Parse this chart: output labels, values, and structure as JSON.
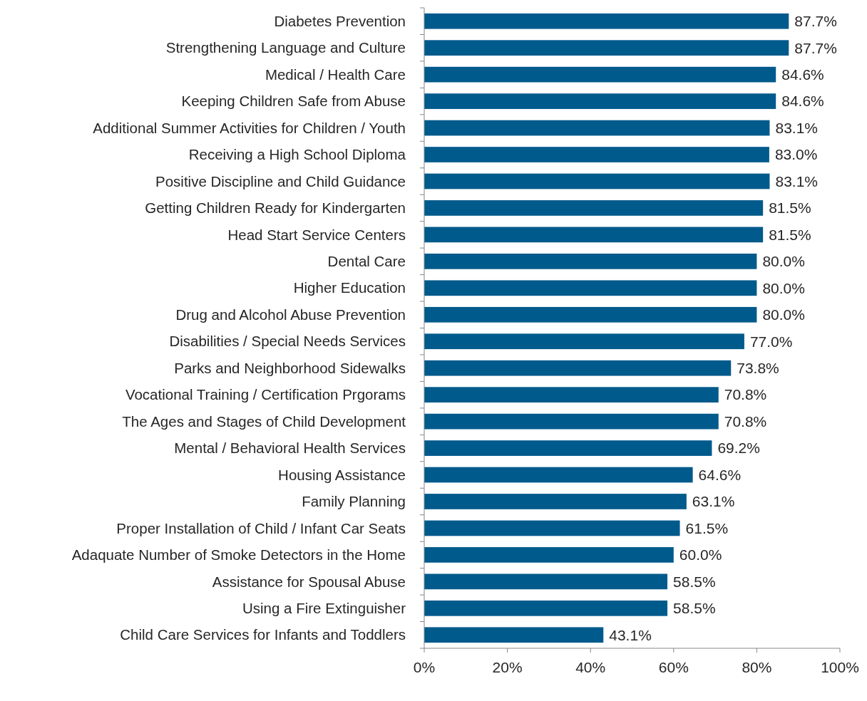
{
  "chart_data": {
    "type": "bar",
    "orientation": "horizontal",
    "categories": [
      "Diabetes Prevention",
      "Strengthening Language and Culture",
      "Medical / Health Care",
      "Keeping Children Safe from Abuse",
      "Additional Summer Activities for Children / Youth",
      "Receiving a High School Diploma",
      "Positive Discipline and Child Guidance",
      "Getting Children Ready for Kindergarten",
      "Head Start Service Centers",
      "Dental Care",
      "Higher Education",
      "Drug and Alcohol Abuse Prevention",
      "Disabilities / Special Needs Services",
      "Parks and Neighborhood Sidewalks",
      "Vocational Training / Certification Prgorams",
      "The Ages and Stages of Child Development",
      "Mental / Behavioral Health Services",
      "Housing Assistance",
      "Family Planning",
      "Proper Installation of Child / Infant Car Seats",
      "Adaquate Number of Smoke Detectors in the Home",
      "Assistance for Spousal Abuse",
      "Using a Fire Extinguisher",
      "Child Care Services for Infants and Toddlers"
    ],
    "values": [
      87.7,
      87.7,
      84.6,
      84.6,
      83.1,
      83.0,
      83.1,
      81.5,
      81.5,
      80.0,
      80.0,
      80.0,
      77.0,
      73.8,
      70.8,
      70.8,
      69.2,
      64.6,
      63.1,
      61.5,
      60.0,
      58.5,
      58.5,
      43.1
    ],
    "value_labels": [
      "87.7%",
      "87.7%",
      "84.6%",
      "84.6%",
      "83.1%",
      "83.0%",
      "83.1%",
      "81.5%",
      "81.5%",
      "80.0%",
      "80.0%",
      "80.0%",
      "77.0%",
      "73.8%",
      "70.8%",
      "70.8%",
      "69.2%",
      "64.6%",
      "63.1%",
      "61.5%",
      "60.0%",
      "58.5%",
      "58.5%",
      "43.1%"
    ],
    "color": "#005a8c",
    "xlim": [
      0,
      100
    ],
    "xticks": [
      {
        "value": 0,
        "label": "0%"
      },
      {
        "value": 20,
        "label": "20%"
      },
      {
        "value": 40,
        "label": "40%"
      },
      {
        "value": 60,
        "label": "60%"
      },
      {
        "value": 80,
        "label": "80%"
      },
      {
        "value": 100,
        "label": "100%"
      }
    ],
    "grid": false
  }
}
